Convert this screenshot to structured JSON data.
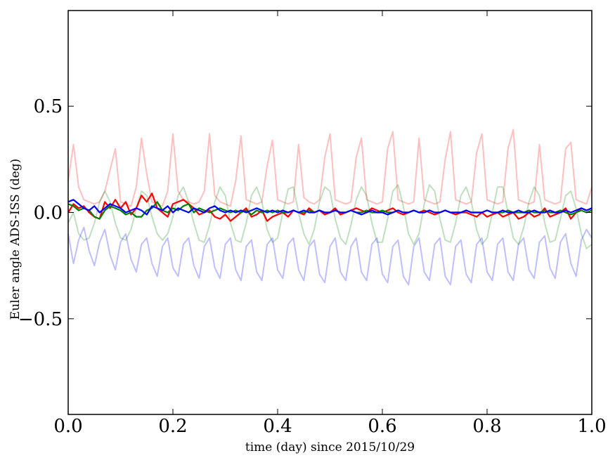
{
  "chart_data": {
    "type": "line",
    "title": "",
    "xlabel": "time (day) since 2015/10/29",
    "ylabel": "Euler angle ADS-ISS (deg)",
    "xlim": [
      0.0,
      1.0
    ],
    "ylim": [
      -0.95,
      0.95
    ],
    "grid": false,
    "legend": "none",
    "x_ticks": [
      0.0,
      0.2,
      0.4,
      0.6,
      0.8,
      1.0
    ],
    "x_tick_labels": [
      "0.0",
      "0.2",
      "0.4",
      "0.6",
      "0.8",
      "1.0"
    ],
    "y_ticks": [
      -0.5,
      0.0,
      0.5
    ],
    "y_tick_labels": [
      "−0.5",
      "0.0",
      "0.5"
    ],
    "x": [
      0.0,
      0.01,
      0.02,
      0.03,
      0.04,
      0.05,
      0.06,
      0.07,
      0.08,
      0.09,
      0.1,
      0.11,
      0.12,
      0.13,
      0.14,
      0.15,
      0.16,
      0.17,
      0.18,
      0.19,
      0.2,
      0.21,
      0.22,
      0.23,
      0.24,
      0.25,
      0.26,
      0.27,
      0.28,
      0.29,
      0.3,
      0.31,
      0.32,
      0.33,
      0.34,
      0.35,
      0.36,
      0.37,
      0.38,
      0.39,
      0.4,
      0.41,
      0.42,
      0.43,
      0.44,
      0.45,
      0.46,
      0.47,
      0.48,
      0.49,
      0.5,
      0.51,
      0.52,
      0.53,
      0.54,
      0.55,
      0.56,
      0.57,
      0.58,
      0.59,
      0.6,
      0.61,
      0.62,
      0.63,
      0.64,
      0.65,
      0.66,
      0.67,
      0.68,
      0.69,
      0.7,
      0.71,
      0.72,
      0.73,
      0.74,
      0.75,
      0.76,
      0.77,
      0.78,
      0.79,
      0.8,
      0.81,
      0.82,
      0.83,
      0.84,
      0.85,
      0.86,
      0.87,
      0.88,
      0.89,
      0.9,
      0.91,
      0.92,
      0.93,
      0.94,
      0.95,
      0.96,
      0.97,
      0.98,
      0.99,
      1.0
    ],
    "series": [
      {
        "color": "#ff0000",
        "opacity": 0.25,
        "values": [
          0.15,
          0.32,
          0.12,
          0.06,
          0.05,
          0.04,
          0.05,
          0.1,
          0.2,
          0.3,
          0.05,
          0.04,
          0.03,
          0.12,
          0.35,
          0.18,
          0.05,
          0.04,
          0.03,
          0.1,
          0.37,
          0.1,
          0.06,
          0.05,
          0.04,
          0.05,
          0.1,
          0.37,
          0.08,
          0.05,
          0.04,
          0.03,
          0.15,
          0.36,
          0.06,
          0.05,
          0.04,
          0.05,
          0.22,
          0.34,
          0.06,
          0.05,
          0.04,
          0.05,
          0.32,
          0.07,
          0.05,
          0.04,
          0.06,
          0.26,
          0.37,
          0.06,
          0.05,
          0.04,
          0.05,
          0.26,
          0.35,
          0.06,
          0.05,
          0.04,
          0.05,
          0.3,
          0.38,
          0.06,
          0.05,
          0.04,
          0.05,
          0.35,
          0.06,
          0.05,
          0.04,
          0.05,
          0.25,
          0.38,
          0.06,
          0.05,
          0.04,
          0.05,
          0.28,
          0.37,
          0.06,
          0.05,
          0.04,
          0.05,
          0.3,
          0.39,
          0.06,
          0.05,
          0.04,
          0.05,
          0.32,
          0.06,
          0.05,
          0.04,
          0.05,
          0.3,
          0.33,
          0.06,
          0.05,
          0.04,
          0.12
        ]
      },
      {
        "color": "#008000",
        "opacity": 0.25,
        "values": [
          -0.05,
          0.0,
          -0.1,
          -0.13,
          -0.12,
          -0.05,
          0.05,
          0.1,
          0.05,
          -0.05,
          -0.12,
          -0.13,
          -0.08,
          0.02,
          0.1,
          0.08,
          -0.02,
          -0.1,
          -0.13,
          -0.1,
          -0.02,
          0.08,
          0.12,
          0.05,
          -0.05,
          -0.13,
          -0.14,
          -0.06,
          0.05,
          0.12,
          0.08,
          -0.05,
          -0.13,
          -0.14,
          -0.05,
          0.08,
          0.12,
          0.05,
          -0.08,
          -0.14,
          -0.12,
          0.0,
          0.11,
          0.12,
          0.0,
          -0.1,
          -0.15,
          -0.08,
          0.05,
          0.12,
          0.1,
          -0.03,
          -0.12,
          -0.15,
          -0.06,
          0.06,
          0.12,
          0.08,
          -0.05,
          -0.14,
          -0.14,
          -0.03,
          0.1,
          0.13,
          0.03,
          -0.1,
          -0.15,
          -0.1,
          0.04,
          0.13,
          0.1,
          -0.03,
          -0.13,
          -0.14,
          -0.05,
          0.08,
          0.12,
          0.05,
          -0.08,
          -0.15,
          -0.12,
          0.0,
          0.12,
          0.12,
          0.0,
          -0.12,
          -0.15,
          -0.07,
          0.05,
          0.12,
          0.08,
          -0.05,
          -0.14,
          -0.13,
          -0.03,
          0.08,
          0.1,
          0.02,
          -0.1,
          -0.17,
          -0.15
        ]
      },
      {
        "color": "#0000ff",
        "opacity": 0.25,
        "values": [
          -0.1,
          -0.24,
          -0.13,
          -0.07,
          -0.18,
          -0.25,
          -0.14,
          -0.08,
          -0.2,
          -0.27,
          -0.14,
          -0.1,
          -0.22,
          -0.28,
          -0.15,
          -0.12,
          -0.24,
          -0.3,
          -0.16,
          -0.12,
          -0.26,
          -0.3,
          -0.15,
          -0.12,
          -0.25,
          -0.31,
          -0.16,
          -0.12,
          -0.26,
          -0.31,
          -0.15,
          -0.12,
          -0.27,
          -0.32,
          -0.16,
          -0.13,
          -0.28,
          -0.32,
          -0.15,
          -0.12,
          -0.27,
          -0.31,
          -0.15,
          -0.12,
          -0.27,
          -0.32,
          -0.16,
          -0.13,
          -0.29,
          -0.33,
          -0.16,
          -0.12,
          -0.28,
          -0.32,
          -0.16,
          -0.12,
          -0.28,
          -0.32,
          -0.15,
          -0.12,
          -0.29,
          -0.33,
          -0.16,
          -0.13,
          -0.3,
          -0.34,
          -0.16,
          -0.12,
          -0.28,
          -0.32,
          -0.15,
          -0.12,
          -0.3,
          -0.34,
          -0.16,
          -0.13,
          -0.29,
          -0.33,
          -0.15,
          -0.12,
          -0.28,
          -0.32,
          -0.15,
          -0.12,
          -0.28,
          -0.32,
          -0.15,
          -0.12,
          -0.27,
          -0.31,
          -0.14,
          -0.11,
          -0.26,
          -0.31,
          -0.14,
          -0.1,
          -0.24,
          -0.3,
          -0.13,
          -0.08,
          -0.12
        ]
      },
      {
        "color": "#ff0000",
        "opacity": 1,
        "values": [
          0.0,
          0.04,
          0.02,
          0.03,
          0.0,
          -0.02,
          -0.03,
          0.05,
          0.02,
          0.06,
          0.02,
          0.05,
          -0.01,
          0.02,
          0.08,
          0.05,
          0.09,
          0.02,
          0.0,
          -0.02,
          0.04,
          0.05,
          0.06,
          0.04,
          0.02,
          -0.01,
          0.0,
          0.01,
          -0.02,
          -0.03,
          -0.01,
          -0.04,
          -0.02,
          0.0,
          0.02,
          -0.02,
          -0.01,
          0.01,
          -0.04,
          -0.02,
          -0.01,
          0.0,
          -0.02,
          0.01,
          0.0,
          -0.01,
          0.02,
          0.0,
          0.01,
          -0.01,
          0.0,
          0.02,
          -0.01,
          0.0,
          0.01,
          0.02,
          0.01,
          0.0,
          0.02,
          0.01,
          0.0,
          0.01,
          0.02,
          0.0,
          -0.01,
          0.0,
          0.01,
          0.0,
          0.01,
          0.0,
          -0.01,
          0.0,
          0.01,
          0.0,
          -0.01,
          0.0,
          0.0,
          -0.01,
          -0.02,
          0.0,
          -0.02,
          -0.01,
          0.0,
          -0.02,
          -0.01,
          0.0,
          -0.03,
          -0.02,
          0.0,
          -0.02,
          -0.01,
          0.02,
          -0.02,
          -0.01,
          0.0,
          0.02,
          -0.03,
          0.0,
          0.02,
          0.01,
          0.02
        ]
      },
      {
        "color": "#008000",
        "opacity": 1,
        "values": [
          0.04,
          0.03,
          0.01,
          0.02,
          0.01,
          -0.02,
          -0.03,
          0.01,
          0.03,
          0.02,
          0.01,
          -0.01,
          0.0,
          -0.02,
          -0.02,
          0.01,
          0.02,
          0.05,
          0.01,
          0.0,
          0.02,
          0.01,
          0.03,
          0.04,
          0.0,
          0.02,
          0.01,
          0.0,
          0.01,
          0.02,
          0.01,
          0.0,
          0.01,
          0.0,
          0.01,
          -0.01,
          0.01,
          0.0,
          0.01,
          0.0,
          0.01,
          0.0,
          0.0,
          0.01,
          0.0,
          0.0,
          0.01,
          0.0,
          0.01,
          0.0,
          0.0,
          0.01,
          0.0,
          0.0,
          0.01,
          0.0,
          0.0,
          0.01,
          0.0,
          0.0,
          0.01,
          0.0,
          0.0,
          0.01,
          0.0,
          0.0,
          0.01,
          0.0,
          0.0,
          0.01,
          0.0,
          0.0,
          0.01,
          0.0,
          0.0,
          0.0,
          0.01,
          0.0,
          0.0,
          0.0,
          0.01,
          0.0,
          0.0,
          0.0,
          0.01,
          0.0,
          0.0,
          0.0,
          0.01,
          0.0,
          0.0,
          0.01,
          0.0,
          0.0,
          0.01,
          0.0,
          -0.01,
          0.0,
          0.01,
          0.0,
          0.01
        ]
      },
      {
        "color": "#0000ff",
        "opacity": 1,
        "values": [
          0.05,
          0.06,
          0.04,
          0.02,
          0.01,
          0.03,
          0.0,
          0.02,
          0.04,
          0.03,
          0.02,
          0.0,
          0.01,
          0.02,
          0.01,
          -0.01,
          0.03,
          0.02,
          0.01,
          0.03,
          0.0,
          0.02,
          0.01,
          0.0,
          0.02,
          0.01,
          0.0,
          0.02,
          0.03,
          0.01,
          0.0,
          0.01,
          0.0,
          0.01,
          0.0,
          0.01,
          0.02,
          0.01,
          0.0,
          0.01,
          0.0,
          0.01,
          0.0,
          0.01,
          0.0,
          0.01,
          0.0,
          0.0,
          0.01,
          0.0,
          0.0,
          0.01,
          0.0,
          0.0,
          0.01,
          0.0,
          -0.01,
          0.0,
          0.01,
          0.0,
          0.0,
          -0.01,
          0.0,
          0.01,
          0.0,
          0.0,
          0.01,
          0.0,
          0.0,
          0.01,
          0.0,
          0.0,
          0.01,
          0.0,
          0.0,
          0.0,
          0.01,
          0.0,
          0.0,
          0.0,
          0.01,
          0.0,
          0.0,
          0.01,
          0.0,
          0.0,
          0.01,
          0.0,
          0.0,
          0.01,
          0.0,
          0.0,
          0.01,
          0.0,
          0.0,
          0.01,
          0.0,
          0.01,
          0.02,
          0.01,
          0.02
        ]
      }
    ]
  }
}
